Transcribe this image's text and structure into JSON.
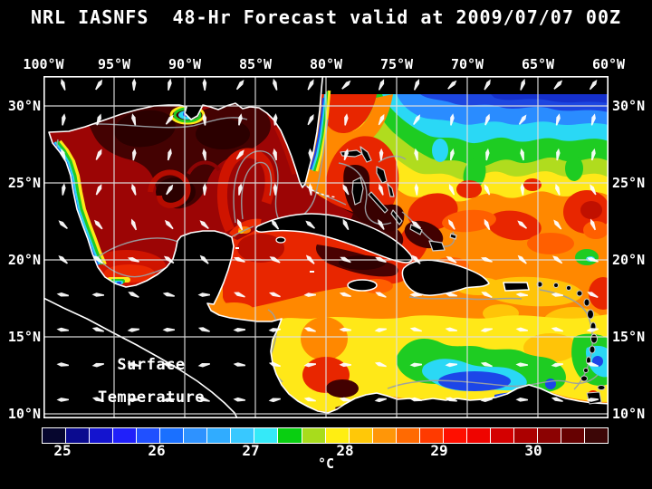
{
  "title": "NRL IASNFS  48-Hr Forecast valid at 2009/07/07 00Z",
  "map": {
    "label_line1": "Surface",
    "label_line2": "Temperature",
    "lon_ticks": [
      "100°W",
      "95°W",
      "90°W",
      "85°W",
      "80°W",
      "75°W",
      "70°W",
      "65°W",
      "60°W"
    ],
    "lat_ticks": [
      "30°N",
      "25°N",
      "20°N",
      "15°N",
      "10°N"
    ]
  },
  "colorbar": {
    "unit_label": "°C",
    "tick_labels": [
      "25",
      "26",
      "27",
      "28",
      "29",
      "30"
    ],
    "segment_colors": [
      "#06062e",
      "#0b0b8f",
      "#1414cf",
      "#2020fa",
      "#2050ff",
      "#1a70ff",
      "#2e92ff",
      "#30acff",
      "#38c8ff",
      "#35e9f8",
      "#09cf11",
      "#a8dc1c",
      "#ffee12",
      "#ffc808",
      "#ff9608",
      "#ff6a02",
      "#ff3a00",
      "#ff0f00",
      "#ef0400",
      "#d40000",
      "#ab0000",
      "#8c0202",
      "#660101",
      "#3c0606"
    ]
  },
  "wind": {
    "arrow_color": "#ffffff"
  },
  "colors": {
    "background": "#000000",
    "text": "#ffffff",
    "grid_line": "#e0e0e0",
    "contour_line": "#9aa0a5",
    "coastline": "#ffffff",
    "land": "#000000",
    "gulf_base": "#9c0505",
    "warm_maroon": "#440202",
    "hot_red": "#e82600",
    "orange": "#ff8800",
    "yellow": "#ffe818",
    "green": "#1ecc22",
    "cyan": "#2ad8f5",
    "blue": "#1d46e0"
  }
}
